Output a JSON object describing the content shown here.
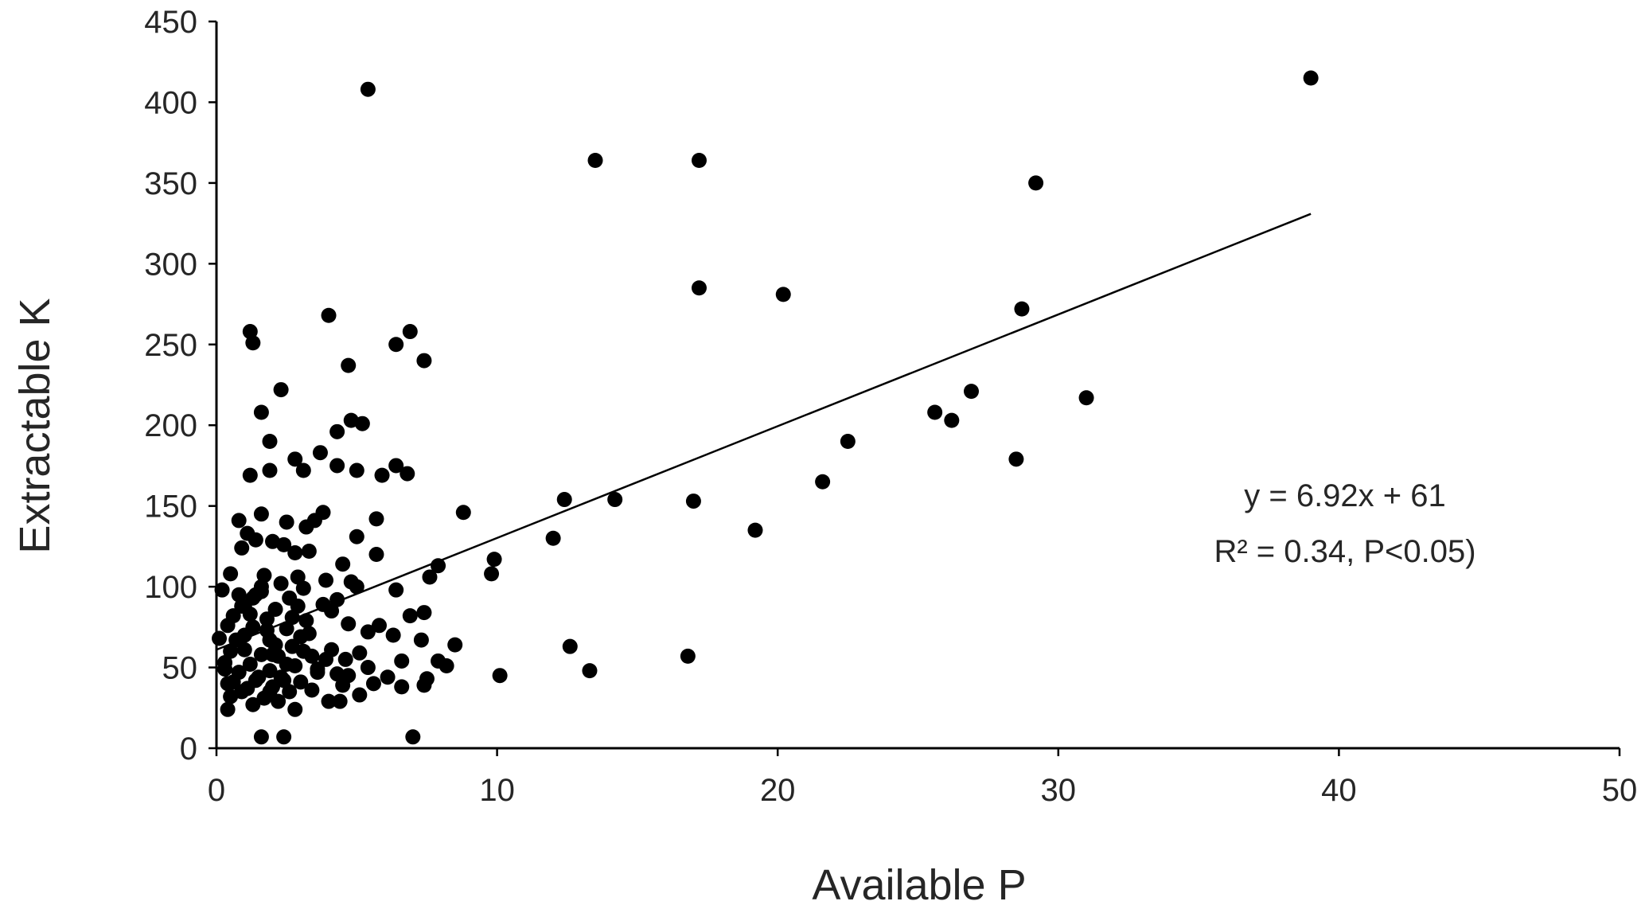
{
  "chart_data": {
    "type": "scatter",
    "xlabel": "Available P",
    "ylabel": "Extractable K",
    "xlim": [
      0,
      50
    ],
    "ylim": [
      0,
      450
    ],
    "xticks": [
      "0",
      "10",
      "20",
      "30",
      "40",
      "50"
    ],
    "yticks": [
      "0",
      "50",
      "100",
      "150",
      "200",
      "250",
      "300",
      "350",
      "400",
      "450"
    ],
    "grid": false,
    "legend": "none",
    "marker_color": "#000000",
    "trendline": {
      "slope": 6.92,
      "intercept": 61,
      "x_range": [
        0,
        39
      ]
    },
    "annotations": [
      {
        "text": "y = 6.92x + 61"
      },
      {
        "text": "R² = 0.34, P<0.05)"
      }
    ],
    "points": [
      [
        39.0,
        415
      ],
      [
        5.4,
        408
      ],
      [
        13.5,
        364
      ],
      [
        17.2,
        364
      ],
      [
        29.2,
        350
      ],
      [
        17.2,
        285
      ],
      [
        20.2,
        281
      ],
      [
        28.7,
        272
      ],
      [
        4.0,
        268
      ],
      [
        6.9,
        258
      ],
      [
        1.2,
        258
      ],
      [
        1.3,
        251
      ],
      [
        6.4,
        250
      ],
      [
        7.4,
        240
      ],
      [
        4.7,
        237
      ],
      [
        2.3,
        222
      ],
      [
        26.9,
        221
      ],
      [
        31.0,
        217
      ],
      [
        25.6,
        208
      ],
      [
        1.6,
        208
      ],
      [
        26.2,
        203
      ],
      [
        4.8,
        203
      ],
      [
        5.2,
        201
      ],
      [
        4.3,
        196
      ],
      [
        1.9,
        190
      ],
      [
        22.5,
        190
      ],
      [
        3.7,
        183
      ],
      [
        28.5,
        179
      ],
      [
        2.8,
        179
      ],
      [
        4.3,
        175
      ],
      [
        6.4,
        175
      ],
      [
        3.1,
        172
      ],
      [
        5.0,
        172
      ],
      [
        1.9,
        172
      ],
      [
        6.8,
        170
      ],
      [
        1.2,
        169
      ],
      [
        5.9,
        169
      ],
      [
        21.6,
        165
      ],
      [
        12.4,
        154
      ],
      [
        14.2,
        154
      ],
      [
        17.0,
        153
      ],
      [
        8.8,
        146
      ],
      [
        3.8,
        146
      ],
      [
        1.6,
        145
      ],
      [
        3.5,
        141
      ],
      [
        0.8,
        141
      ],
      [
        5.7,
        142
      ],
      [
        2.5,
        140
      ],
      [
        3.2,
        137
      ],
      [
        19.2,
        135
      ],
      [
        1.1,
        133
      ],
      [
        2.0,
        128
      ],
      [
        5.0,
        131
      ],
      [
        12.0,
        130
      ],
      [
        1.4,
        129
      ],
      [
        2.4,
        126
      ],
      [
        0.9,
        124
      ],
      [
        3.3,
        122
      ],
      [
        5.7,
        120
      ],
      [
        2.8,
        121
      ],
      [
        9.9,
        117
      ],
      [
        4.5,
        114
      ],
      [
        7.9,
        113
      ],
      [
        9.8,
        108
      ],
      [
        0.5,
        108
      ],
      [
        1.7,
        107
      ],
      [
        2.9,
        106
      ],
      [
        7.6,
        106
      ],
      [
        3.9,
        104
      ],
      [
        4.8,
        103
      ],
      [
        2.3,
        102
      ],
      [
        5.0,
        100
      ],
      [
        6.4,
        98
      ],
      [
        0.2,
        98
      ],
      [
        3.1,
        99
      ],
      [
        1.6,
        97
      ],
      [
        0.8,
        95
      ],
      [
        1.3,
        93
      ],
      [
        4.3,
        92
      ],
      [
        2.6,
        93
      ],
      [
        3.8,
        89
      ],
      [
        1.0,
        88
      ],
      [
        2.1,
        86
      ],
      [
        7.4,
        84
      ],
      [
        0.6,
        82
      ],
      [
        6.9,
        82
      ],
      [
        1.8,
        80
      ],
      [
        3.2,
        79
      ],
      [
        4.7,
        77
      ],
      [
        5.8,
        76
      ],
      [
        0.4,
        76
      ],
      [
        1.3,
        75
      ],
      [
        2.5,
        74
      ],
      [
        5.4,
        72
      ],
      [
        6.3,
        70
      ],
      [
        3.0,
        69
      ],
      [
        7.3,
        67
      ],
      [
        1.9,
        67
      ],
      [
        0.1,
        68
      ],
      [
        8.5,
        64
      ],
      [
        12.6,
        63
      ],
      [
        2.7,
        63
      ],
      [
        4.1,
        61
      ],
      [
        1.0,
        61
      ],
      [
        0.5,
        60
      ],
      [
        5.1,
        59
      ],
      [
        1.6,
        58
      ],
      [
        3.4,
        57
      ],
      [
        16.8,
        57
      ],
      [
        2.2,
        57
      ],
      [
        4.6,
        55
      ],
      [
        6.6,
        54
      ],
      [
        7.9,
        54
      ],
      [
        0.3,
        53
      ],
      [
        1.2,
        52
      ],
      [
        8.2,
        51
      ],
      [
        2.8,
        51
      ],
      [
        5.4,
        50
      ],
      [
        3.6,
        49
      ],
      [
        1.9,
        48
      ],
      [
        13.3,
        48
      ],
      [
        0.8,
        47
      ],
      [
        4.3,
        46
      ],
      [
        10.1,
        45
      ],
      [
        2.3,
        44
      ],
      [
        6.1,
        44
      ],
      [
        7.5,
        43
      ],
      [
        1.4,
        42
      ],
      [
        3.0,
        41
      ],
      [
        5.6,
        40
      ],
      [
        0.4,
        40
      ],
      [
        4.5,
        39
      ],
      [
        7.4,
        39
      ],
      [
        2.0,
        38
      ],
      [
        6.6,
        38
      ],
      [
        1.1,
        37
      ],
      [
        3.4,
        36
      ],
      [
        2.6,
        35
      ],
      [
        5.1,
        33
      ],
      [
        0.5,
        32
      ],
      [
        1.7,
        31
      ],
      [
        4.0,
        29
      ],
      [
        2.2,
        29
      ],
      [
        4.4,
        29
      ],
      [
        1.3,
        27
      ],
      [
        0.4,
        24
      ],
      [
        2.8,
        24
      ],
      [
        1.6,
        7
      ],
      [
        2.4,
        7
      ],
      [
        7.0,
        7
      ],
      [
        0.9,
        35
      ],
      [
        1.5,
        44
      ],
      [
        2.5,
        52
      ],
      [
        3.1,
        60
      ],
      [
        0.7,
        67
      ],
      [
        1.8,
        73
      ],
      [
        2.7,
        81
      ],
      [
        0.9,
        88
      ],
      [
        1.4,
        95
      ],
      [
        2.1,
        64
      ],
      [
        3.6,
        47
      ],
      [
        0.6,
        41
      ],
      [
        1.2,
        83
      ],
      [
        2.0,
        58
      ],
      [
        3.3,
        71
      ],
      [
        4.1,
        85
      ],
      [
        0.3,
        49
      ],
      [
        1.6,
        100
      ],
      [
        2.4,
        42
      ],
      [
        2.9,
        88
      ],
      [
        3.9,
        55
      ],
      [
        1.0,
        70
      ],
      [
        1.9,
        35
      ],
      [
        4.7,
        45
      ]
    ]
  }
}
